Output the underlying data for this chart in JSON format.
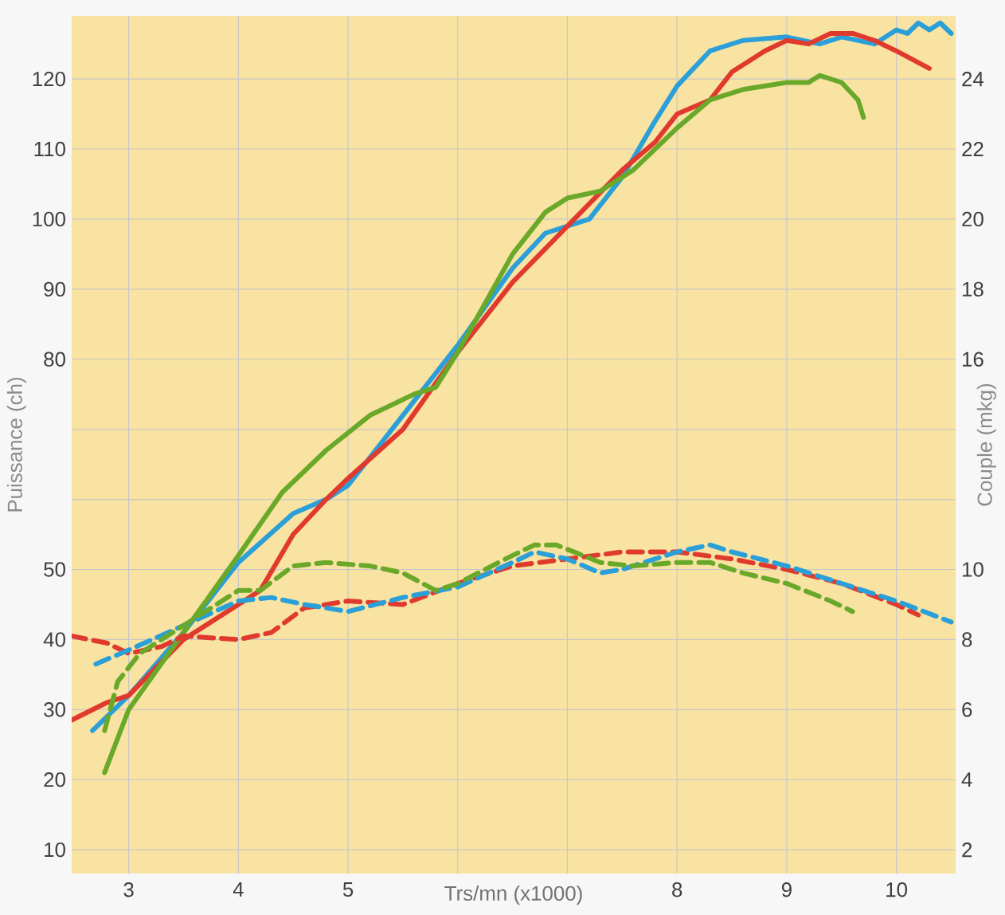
{
  "chart_data": {
    "type": "line",
    "xlabel": "Trs/mn (x1000)",
    "ylabel": "Puissance (ch)",
    "y2label": "Couple (mkg)",
    "xlim": [
      2.48,
      10.54
    ],
    "ylim": [
      6.6,
      129
    ],
    "y2lim": [
      1.32,
      25.8
    ],
    "xticks": [
      3,
      4,
      5,
      {
        "value": 6,
        "label": null
      },
      {
        "value": 7,
        "label": null
      },
      8,
      9,
      10
    ],
    "yticks": [
      10,
      20,
      30,
      40,
      50,
      {
        "value": 60,
        "label": null
      },
      {
        "value": 70,
        "label": null
      },
      80,
      90,
      100,
      110,
      120
    ],
    "y2ticks": [
      2,
      4,
      6,
      8,
      10,
      16,
      18,
      20,
      22,
      24
    ],
    "grid": true,
    "line_style": "solid",
    "series": [
      {
        "color": "#2a9fd8",
        "x": [
          2.67,
          3.0,
          3.5,
          4.0,
          4.5,
          4.8,
          5.0,
          5.5,
          6.0,
          6.5,
          6.8,
          7.0,
          7.2,
          7.5,
          7.8,
          8.0,
          8.3,
          8.6,
          9.0,
          9.3,
          9.5,
          9.8,
          10.0,
          10.1,
          10.2,
          10.3,
          10.4,
          10.5
        ],
        "values": [
          27,
          32,
          41,
          51,
          58,
          60,
          62,
          72,
          82,
          93,
          98,
          99,
          100,
          106,
          114,
          119,
          124,
          125.5,
          126,
          125,
          126,
          125,
          127,
          126.5,
          128,
          127,
          128,
          126.5
        ]
      },
      {
        "color": "#e03a2e",
        "x": [
          2.48,
          2.8,
          3.0,
          3.5,
          4.0,
          4.2,
          4.5,
          4.8,
          5.0,
          5.5,
          6.0,
          6.5,
          7.0,
          7.5,
          7.8,
          8.0,
          8.3,
          8.5,
          8.8,
          9.0,
          9.2,
          9.4,
          9.6,
          9.8,
          10.0,
          10.3
        ],
        "values": [
          28.5,
          31,
          32,
          40,
          45,
          47,
          55,
          60,
          63,
          70,
          81,
          91,
          99,
          107,
          111,
          115,
          117,
          121,
          124,
          125.5,
          125,
          126.5,
          126.5,
          125.5,
          124,
          121.5
        ]
      },
      {
        "color": "#6aa82a",
        "x": [
          2.78,
          3.0,
          3.5,
          4.0,
          4.4,
          4.8,
          5.2,
          5.6,
          5.8,
          6.0,
          6.5,
          6.8,
          7.0,
          7.3,
          7.6,
          8.0,
          8.3,
          8.6,
          9.0,
          9.2,
          9.3,
          9.5,
          9.65,
          9.7
        ],
        "values": [
          21,
          30,
          41,
          52,
          61,
          67,
          72,
          75,
          76,
          81,
          95,
          101,
          103,
          104,
          107,
          113,
          117,
          118.5,
          119.5,
          119.5,
          120.5,
          119.5,
          117,
          114.5
        ]
      },
      {
        "color": "#e03a2e",
        "axis": "y2",
        "line_style": "dashed",
        "x": [
          2.48,
          2.8,
          3.0,
          3.3,
          3.5,
          4.0,
          4.3,
          4.6,
          5.0,
          5.5,
          6.0,
          6.5,
          7.0,
          7.5,
          8.0,
          8.5,
          9.0,
          9.5,
          10.0,
          10.2
        ],
        "values": [
          8.1,
          7.9,
          7.6,
          7.8,
          8.1,
          8.0,
          8.2,
          8.9,
          9.1,
          9.0,
          9.6,
          10.1,
          10.3,
          10.5,
          10.5,
          10.3,
          10.0,
          9.6,
          9.0,
          8.7
        ]
      },
      {
        "color": "#2a9fd8",
        "axis": "y2",
        "line_style": "dashed",
        "x": [
          2.7,
          3.0,
          3.5,
          4.0,
          4.3,
          4.6,
          5.0,
          5.5,
          6.0,
          6.5,
          6.7,
          7.0,
          7.3,
          7.5,
          8.0,
          8.3,
          8.5,
          9.0,
          9.5,
          10.0,
          10.5
        ],
        "values": [
          7.3,
          7.7,
          8.4,
          9.1,
          9.2,
          9.0,
          8.8,
          9.2,
          9.5,
          10.2,
          10.5,
          10.3,
          9.9,
          10.0,
          10.5,
          10.7,
          10.5,
          10.1,
          9.6,
          9.1,
          8.5
        ]
      },
      {
        "color": "#6aa82a",
        "axis": "y2",
        "line_style": "dashed",
        "x": [
          2.78,
          2.9,
          3.1,
          3.5,
          4.0,
          4.2,
          4.5,
          4.8,
          5.2,
          5.5,
          5.8,
          6.0,
          6.5,
          6.7,
          6.9,
          7.3,
          7.6,
          8.0,
          8.3,
          8.6,
          9.0,
          9.4,
          9.6
        ],
        "values": [
          5.4,
          6.8,
          7.6,
          8.4,
          9.4,
          9.4,
          10.1,
          10.2,
          10.1,
          9.9,
          9.4,
          9.6,
          10.4,
          10.7,
          10.7,
          10.2,
          10.1,
          10.2,
          10.2,
          9.9,
          9.6,
          9.1,
          8.8
        ]
      }
    ]
  }
}
